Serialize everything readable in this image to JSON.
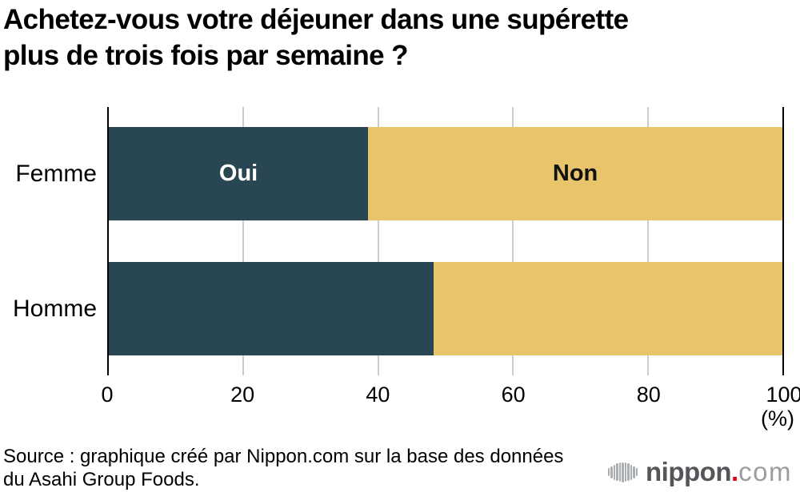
{
  "title": {
    "line1": "Achetez-vous votre déjeuner dans une supérette",
    "line2": "plus de trois fois par semaine ?"
  },
  "chart_data": {
    "type": "bar",
    "variant": "horizontal-stacked",
    "categories": [
      "Femme",
      "Homme"
    ],
    "series": [
      {
        "name": "Oui",
        "values": [
          38.5,
          48.2
        ],
        "color": "#294653",
        "label_color": "#ffffff"
      },
      {
        "name": "Non",
        "values": [
          61.5,
          51.8
        ],
        "color": "#E8C56A",
        "label_color": "#111111"
      }
    ],
    "xlim": [
      0,
      100
    ],
    "ticks": [
      0,
      20,
      40,
      60,
      80,
      100
    ],
    "xlabel": "(%)",
    "grid": "vertical-gridlines",
    "segment_labels_shown_on_row": "Femme",
    "gridline_color": "#CCCCCC",
    "axis_color": "#000000"
  },
  "source": {
    "line1": "Source : graphique créé par Nippon.com sur la base des données",
    "line2": "du Asahi Group Foods."
  },
  "logo": {
    "brand": "nippon",
    "dot": ".",
    "tld": "com",
    "icon": "soundwave-bars-icon",
    "dot_color": "#E60012",
    "brand_color": "#55565A",
    "tld_color": "#9B9EA1"
  }
}
